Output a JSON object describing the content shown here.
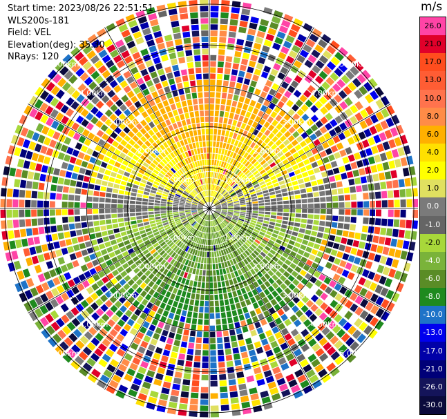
{
  "info": {
    "start_time": "Start time: 2023/08/26 22:51:51",
    "device": "WLS200s-181",
    "field": "Field: VEL",
    "elevation": "Elevation(deg): 35.30",
    "nrays": "NRays: 120"
  },
  "colorbar": {
    "unit": "m/s",
    "entries": [
      {
        "label": "26.0",
        "color": "#ff44a6"
      },
      {
        "label": "21.0",
        "color": "#e0002a"
      },
      {
        "label": "17.0",
        "color": "#ff4d1e"
      },
      {
        "label": "13.0",
        "color": "#ff5d34"
      },
      {
        "label": "10.0",
        "color": "#ff734d"
      },
      {
        "label": "8.0",
        "color": "#ff8c47"
      },
      {
        "label": "6.0",
        "color": "#ffb000"
      },
      {
        "label": "4.0",
        "color": "#ffe000"
      },
      {
        "label": "2.0",
        "color": "#ffff00"
      },
      {
        "label": "1.0",
        "color": "#e0e060"
      },
      {
        "label": "0.0",
        "color": "#7a7a7a"
      },
      {
        "label": "-1.0",
        "color": "#656565"
      },
      {
        "label": "-2.0",
        "color": "#a8d83a"
      },
      {
        "label": "-4.0",
        "color": "#7ab33a"
      },
      {
        "label": "-6.0",
        "color": "#5a8c26"
      },
      {
        "label": "-8.0",
        "color": "#1e8a1e"
      },
      {
        "label": "-10.0",
        "color": "#1e73c8"
      },
      {
        "label": "-13.0",
        "color": "#0000ee"
      },
      {
        "label": "-17.0",
        "color": "#0000a8"
      },
      {
        "label": "-21.0",
        "color": "#000078"
      },
      {
        "label": "-26.0",
        "color": "#14145a"
      },
      {
        "label": "-30.0",
        "color": "#0a0a3c"
      }
    ]
  },
  "range_labels": [
    "1.00km",
    "2.00km",
    "3.00km",
    "4.00km",
    "5.00km"
  ]
}
